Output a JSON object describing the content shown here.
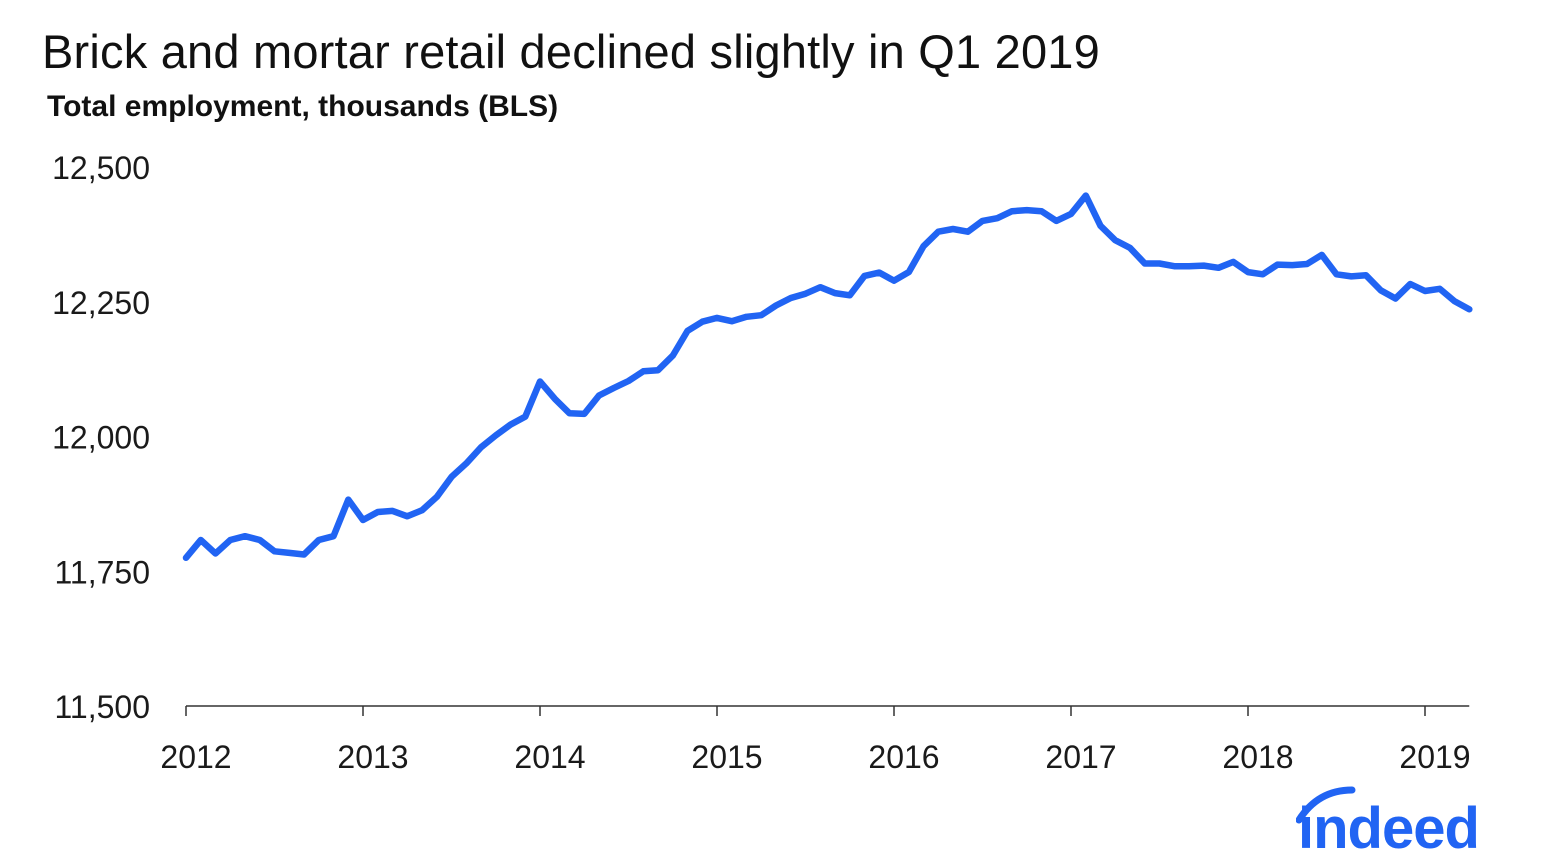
{
  "title": "Brick and mortar retail declined slightly in Q1 2019",
  "subtitle": "Total employment, thousands (BLS)",
  "logo_text": "indeed",
  "colors": {
    "line": "#2164f3",
    "axis": "#333333",
    "logo": "#2164f3"
  },
  "chart_data": {
    "type": "line",
    "title": "Brick and mortar retail declined slightly in Q1 2019",
    "ylabel": "Total employment, thousands (BLS)",
    "xlabel": "",
    "ylim": [
      11500,
      12500
    ],
    "yticks": [
      11500,
      11750,
      12000,
      12250,
      12500
    ],
    "ytick_labels": [
      "11,500",
      "11,750",
      "12,000",
      "12,250",
      "12,500"
    ],
    "xticks": [
      "2012",
      "2013",
      "2014",
      "2015",
      "2016",
      "2017",
      "2018",
      "2019"
    ],
    "grid": false,
    "legend": "none",
    "start": "2012-01",
    "frequency": "monthly",
    "series": [
      {
        "values": [
          11775,
          11808,
          11783,
          11808,
          11815,
          11808,
          11787,
          11784,
          11781,
          11808,
          11815,
          11883,
          11845,
          11860,
          11862,
          11852,
          11863,
          11888,
          11925,
          11950,
          11980,
          12002,
          12022,
          12037,
          12102,
          12070,
          12043,
          12042,
          12076,
          12090,
          12103,
          12121,
          12123,
          12150,
          12196,
          12213,
          12220,
          12214,
          12222,
          12225,
          12243,
          12257,
          12265,
          12277,
          12266,
          12262,
          12298,
          12304,
          12289,
          12305,
          12353,
          12380,
          12385,
          12380,
          12400,
          12405,
          12418,
          12420,
          12418,
          12400,
          12413,
          12447,
          12391,
          12364,
          12350,
          12321,
          12321,
          12316,
          12316,
          12317,
          12313,
          12324,
          12305,
          12301,
          12319,
          12318,
          12320,
          12337,
          12301,
          12297,
          12299,
          12271,
          12256,
          12283,
          12270,
          12274,
          12251,
          12236
        ]
      }
    ]
  }
}
